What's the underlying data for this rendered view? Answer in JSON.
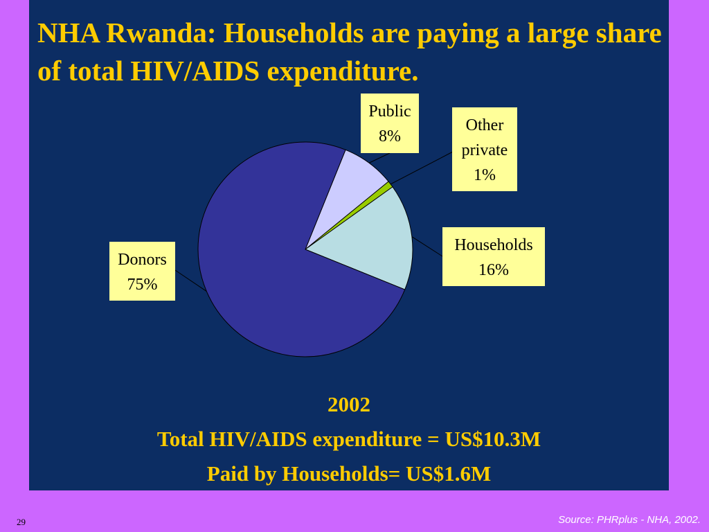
{
  "slide": {
    "title_line1": "NHA Rwanda: Households are paying a large share",
    "title_line2": "of total HIV/AIDS expenditure.",
    "year": "2002",
    "total_line": "Total HIV/AIDS expenditure = US$10.3M",
    "households_line": "Paid by Households= US$1.6M",
    "page_number": "29",
    "source": "Source: PHRplus - NHA, 2002."
  },
  "chart_data": {
    "type": "pie",
    "slices": [
      {
        "name": "Public",
        "value": 8,
        "value_label": "8%",
        "color": "#ccccff"
      },
      {
        "name": "Other private",
        "name_line1": "Other",
        "name_line2": "private",
        "value": 1,
        "value_label": "1%",
        "color": "#99cc00"
      },
      {
        "name": "Households",
        "value": 16,
        "value_label": "16%",
        "color": "#b8dde3"
      },
      {
        "name": "Donors",
        "value": 75,
        "value_label": "75%",
        "color": "#333399"
      }
    ]
  }
}
